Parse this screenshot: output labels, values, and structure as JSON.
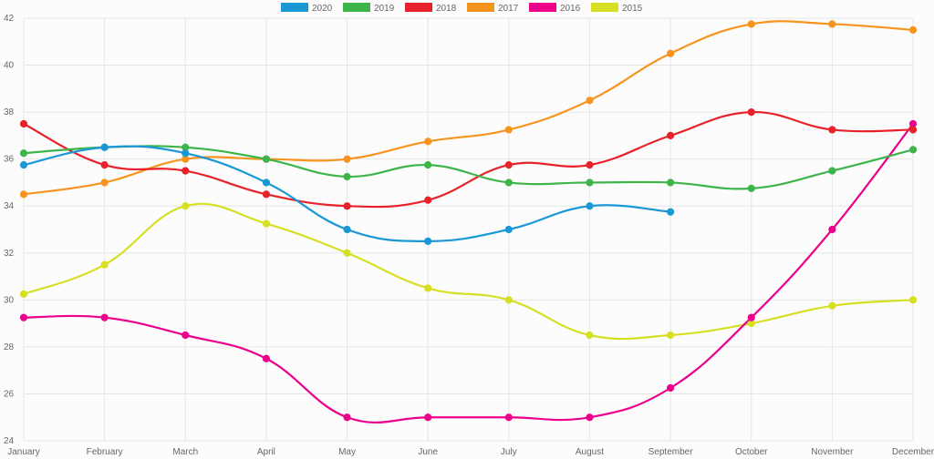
{
  "chart_data": {
    "type": "line",
    "title": "",
    "xlabel": "",
    "ylabel": "",
    "categories": [
      "January",
      "February",
      "March",
      "April",
      "May",
      "June",
      "July",
      "August",
      "September",
      "October",
      "November",
      "December"
    ],
    "ylim": [
      24,
      42
    ],
    "yticks": [
      24,
      26,
      28,
      30,
      32,
      34,
      36,
      38,
      40,
      42
    ],
    "grid": true,
    "legend_position": "top-center",
    "series": [
      {
        "name": "2020",
        "color": "#1a98d5",
        "values": [
          35.75,
          36.5,
          36.25,
          35.0,
          33.0,
          32.5,
          33.0,
          34.0,
          33.75,
          null,
          null,
          null
        ]
      },
      {
        "name": "2019",
        "color": "#3db54a",
        "values": [
          36.25,
          36.5,
          36.5,
          36.0,
          35.25,
          35.75,
          35.0,
          35.0,
          35.0,
          34.75,
          35.5,
          36.4
        ]
      },
      {
        "name": "2018",
        "color": "#e8222a",
        "values": [
          37.5,
          35.75,
          35.5,
          34.5,
          34.0,
          34.25,
          35.75,
          35.75,
          37.0,
          38.0,
          37.25,
          37.25
        ]
      },
      {
        "name": "2017",
        "color": "#f7941e",
        "values": [
          34.5,
          35.0,
          36.0,
          36.0,
          36.0,
          36.75,
          37.25,
          38.5,
          40.5,
          41.75,
          41.75,
          41.5
        ]
      },
      {
        "name": "2016",
        "color": "#ec008c",
        "values": [
          29.25,
          29.25,
          28.5,
          27.5,
          25.0,
          25.0,
          25.0,
          25.0,
          26.25,
          29.25,
          33.0,
          37.5
        ]
      },
      {
        "name": "2015",
        "color": "#d7df23",
        "values": [
          30.25,
          31.5,
          34.0,
          33.25,
          32.0,
          30.5,
          30.0,
          28.5,
          28.5,
          29.0,
          29.75,
          30.0
        ]
      }
    ]
  }
}
